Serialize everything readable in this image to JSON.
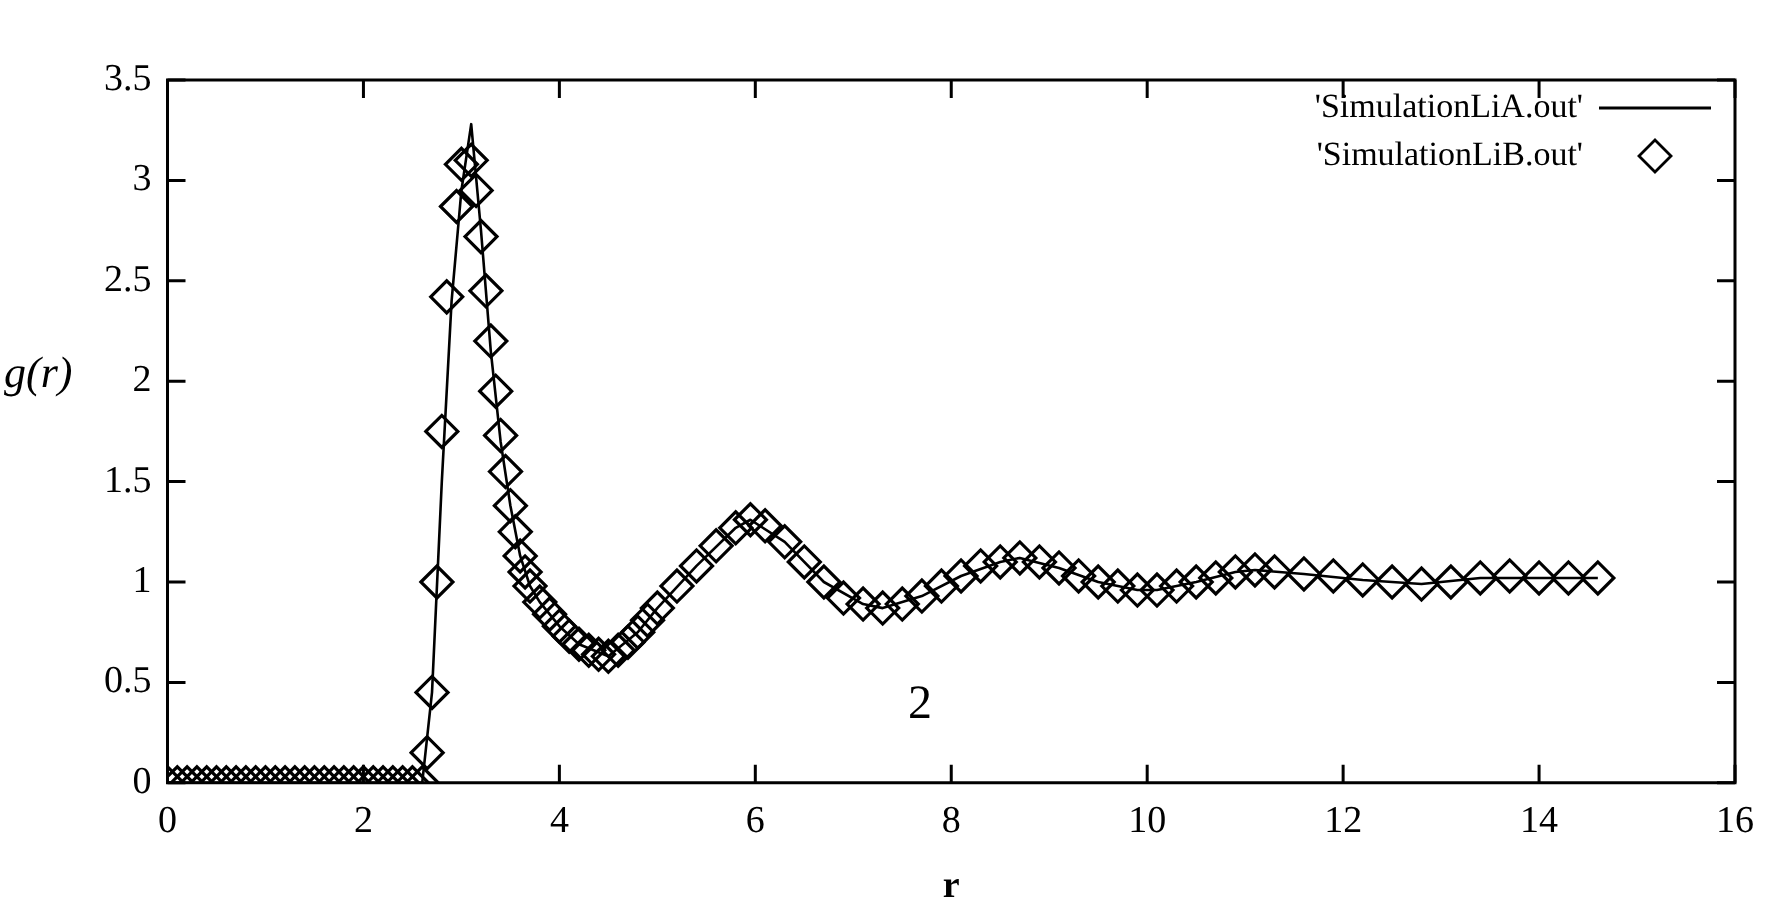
{
  "chart_data": {
    "type": "line",
    "xlabel": "r",
    "ylabel": "g(r)",
    "xlim": [
      0,
      16
    ],
    "xticks": [
      0,
      2,
      4,
      6,
      8,
      10,
      12,
      14,
      16
    ],
    "ylim": [
      0,
      3.5
    ],
    "yticks": [
      0,
      0.5,
      1,
      1.5,
      2,
      2.5,
      3,
      3.5
    ],
    "grid": false,
    "legend": "top right",
    "annotations": [
      "2"
    ],
    "series": [
      {
        "name": "'SimulationLiA.out'",
        "type": "line",
        "color": "#000000",
        "x": [
          0,
          2.6,
          2.7,
          2.8,
          2.9,
          3.0,
          3.1,
          3.2,
          3.3,
          3.4,
          3.5,
          3.6,
          3.7,
          3.8,
          4.0,
          4.2,
          4.5,
          4.8,
          5.0,
          5.4,
          5.8,
          5.95,
          6.3,
          6.7,
          7.1,
          7.3,
          7.7,
          8.1,
          8.5,
          8.7,
          9.1,
          9.5,
          9.9,
          10.1,
          10.5,
          10.9,
          11.1,
          11.6,
          12.2,
          12.8,
          13.4,
          14.0,
          14.6
        ],
        "values": [
          0,
          0,
          0.45,
          1.5,
          2.4,
          2.95,
          3.28,
          2.75,
          2.15,
          1.7,
          1.38,
          1.13,
          0.98,
          0.9,
          0.78,
          0.69,
          0.63,
          0.75,
          0.87,
          1.08,
          1.27,
          1.31,
          1.2,
          1.0,
          0.89,
          0.87,
          0.93,
          1.03,
          1.1,
          1.12,
          1.07,
          1.0,
          0.96,
          0.96,
          1.0,
          1.05,
          1.06,
          1.04,
          1.01,
          0.99,
          1.02,
          1.02,
          1.02
        ]
      },
      {
        "name": "'SimulationLiB.out'",
        "type": "scatter",
        "marker": "diamond",
        "color": "#000000",
        "x": [
          0,
          0.1,
          0.2,
          0.3,
          0.4,
          0.5,
          0.6,
          0.7,
          0.8,
          0.9,
          1.0,
          1.1,
          1.2,
          1.3,
          1.4,
          1.5,
          1.6,
          1.7,
          1.8,
          1.9,
          2.0,
          2.1,
          2.2,
          2.3,
          2.4,
          2.5,
          2.6,
          2.65,
          2.7,
          2.75,
          2.8,
          2.85,
          2.95,
          3.0,
          3.1,
          3.15,
          3.2,
          3.25,
          3.3,
          3.35,
          3.4,
          3.45,
          3.5,
          3.55,
          3.6,
          3.65,
          3.7,
          3.8,
          3.9,
          4.0,
          4.1,
          4.2,
          4.3,
          4.4,
          4.5,
          4.6,
          4.7,
          4.8,
          4.9,
          5.0,
          5.2,
          5.4,
          5.6,
          5.8,
          5.95,
          6.1,
          6.3,
          6.5,
          6.7,
          6.9,
          7.1,
          7.3,
          7.5,
          7.7,
          7.9,
          8.1,
          8.3,
          8.5,
          8.7,
          8.9,
          9.1,
          9.3,
          9.5,
          9.7,
          9.9,
          10.1,
          10.3,
          10.5,
          10.7,
          10.9,
          11.1,
          11.3,
          11.6,
          11.9,
          12.2,
          12.5,
          12.8,
          13.1,
          13.4,
          13.7,
          14.0,
          14.3,
          14.6
        ],
        "values": [
          0,
          0,
          0,
          0,
          0,
          0,
          0,
          0,
          0,
          0,
          0,
          0,
          0,
          0,
          0,
          0,
          0,
          0,
          0,
          0,
          0,
          0,
          0,
          0,
          0,
          0,
          0,
          0.15,
          0.45,
          1.0,
          1.75,
          2.42,
          2.87,
          3.08,
          3.1,
          2.95,
          2.72,
          2.45,
          2.2,
          1.95,
          1.73,
          1.55,
          1.38,
          1.25,
          1.13,
          1.05,
          0.98,
          0.9,
          0.84,
          0.78,
          0.73,
          0.69,
          0.66,
          0.64,
          0.63,
          0.66,
          0.7,
          0.75,
          0.81,
          0.87,
          0.98,
          1.08,
          1.18,
          1.27,
          1.31,
          1.28,
          1.2,
          1.1,
          1.0,
          0.92,
          0.89,
          0.87,
          0.89,
          0.93,
          0.98,
          1.03,
          1.08,
          1.1,
          1.12,
          1.1,
          1.07,
          1.03,
          1.0,
          0.98,
          0.96,
          0.96,
          0.98,
          1.0,
          1.02,
          1.05,
          1.06,
          1.05,
          1.04,
          1.03,
          1.01,
          1.0,
          0.99,
          1.0,
          1.02,
          1.03,
          1.02,
          1.02,
          1.02
        ]
      }
    ]
  }
}
